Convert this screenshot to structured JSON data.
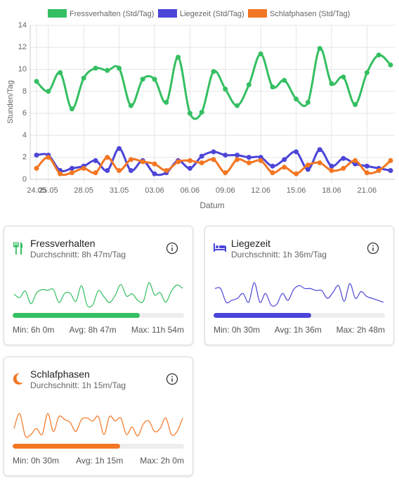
{
  "chart_data": {
    "type": "line",
    "y_label": "Stunden/Tag",
    "x_label": "Datum",
    "categories": [
      "24.05",
      "25.05",
      null,
      null,
      "28.05",
      null,
      null,
      "31.05",
      null,
      null,
      "03.06",
      null,
      null,
      "06.06",
      null,
      null,
      "09.06",
      null,
      null,
      "12.06",
      null,
      null,
      "15.06",
      null,
      null,
      "18.06",
      null,
      null,
      "21.06",
      null,
      null
    ],
    "series": [
      {
        "name": "Fressverhalten (Std/Tag)",
        "color": "#34bf62",
        "values": [
          8.9,
          8.0,
          9.7,
          6.4,
          9.2,
          10.1,
          9.9,
          10.1,
          6.7,
          9.1,
          9.1,
          7.0,
          11.1,
          6.0,
          6.1,
          9.8,
          8.2,
          6.7,
          8.6,
          11.4,
          8.4,
          9.0,
          7.3,
          7.0,
          11.9,
          8.7,
          9.3,
          6.8,
          9.7,
          11.3,
          10.4
        ]
      },
      {
        "name": "Liegezeit (Std/Tag)",
        "color": "#4c45d8",
        "values": [
          2.2,
          2.2,
          0.8,
          1.0,
          1.2,
          1.7,
          0.8,
          2.8,
          0.8,
          1.7,
          0.5,
          0.6,
          1.7,
          1.0,
          2.1,
          2.5,
          2.2,
          2.2,
          2.0,
          2.0,
          1.2,
          1.8,
          2.5,
          0.9,
          2.7,
          1.2,
          1.9,
          1.4,
          1.2,
          1.0,
          0.8
        ]
      },
      {
        "name": "Schlafphasen (Std/Tag)",
        "color": "#f27623",
        "values": [
          1.0,
          2.0,
          0.5,
          0.6,
          1.0,
          0.6,
          2.0,
          0.8,
          1.8,
          1.6,
          1.4,
          0.8,
          1.6,
          1.7,
          1.5,
          1.8,
          0.6,
          1.8,
          1.5,
          1.7,
          0.6,
          1.1,
          0.5,
          1.3,
          1.5,
          0.8,
          1.0,
          1.7,
          0.6,
          0.8,
          1.7
        ]
      }
    ],
    "ylim": [
      0,
      14
    ],
    "yticks": [
      0,
      2,
      4,
      6,
      8,
      10,
      12,
      14
    ],
    "grid": true,
    "legend": "top"
  },
  "cards": [
    {
      "title": "Fressverhalten",
      "subtitle": "Durchschnitt: 8h 47m/Tag",
      "min": "Min: 6h 0m",
      "avg": "Avg: 8h 47m",
      "max": "Max: 11h 54m",
      "progress": 74
    },
    {
      "title": "Liegezeit",
      "subtitle": "Durchschnitt: 1h 36m/Tag",
      "min": "Min: 0h 30m",
      "avg": "Avg: 1h 36m",
      "max": "Max: 2h 48m",
      "progress": 57
    },
    {
      "title": "Schlafphasen",
      "subtitle": "Durchschnitt: 1h 15m/Tag",
      "min": "Min: 0h 30m",
      "avg": "Avg: 1h 15m",
      "max": "Max: 2h 0m",
      "progress": 62.5
    }
  ]
}
